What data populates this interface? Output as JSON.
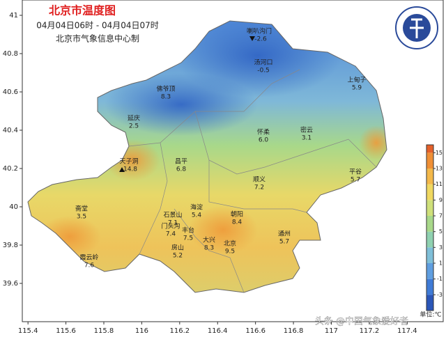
{
  "map": {
    "title": "北京市温度图",
    "subtitle": "04月04日06时 - 04月04日07时",
    "producer": "北京市气象信息中心制",
    "xlim": [
      115.37,
      117.59
    ],
    "ylim": [
      39.4,
      41.08
    ],
    "xticks": [
      115.4,
      115.6,
      115.8,
      116,
      116.2,
      116.4,
      116.6,
      116.8,
      117,
      117.2,
      117.4
    ],
    "yticks": [
      39.6,
      39.8,
      40,
      40.2,
      40.4,
      40.6,
      40.8,
      41
    ],
    "stations": [
      {
        "name": "喇叭沟门",
        "value": "-2.6"
      },
      {
        "name": "汤河口",
        "value": "-0.5"
      },
      {
        "name": "上甸子",
        "value": "5.9"
      },
      {
        "name": "佛爷顶",
        "value": "8.3"
      },
      {
        "name": "延庆",
        "value": "2.5"
      },
      {
        "name": "怀柔",
        "value": "6.0"
      },
      {
        "name": "密云",
        "value": "3.1"
      },
      {
        "name": "天子洞",
        "value": "14.8"
      },
      {
        "name": "昌平",
        "value": "6.8"
      },
      {
        "name": "顺义",
        "value": "7.2"
      },
      {
        "name": "平谷",
        "value": "5.7"
      },
      {
        "name": "斋堂",
        "value": "3.5"
      },
      {
        "name": "海淀",
        "value": "5.4"
      },
      {
        "name": "石景山",
        "value": "7.1"
      },
      {
        "name": "朝阳",
        "value": "8.4"
      },
      {
        "name": "门头沟",
        "value": "7.4"
      },
      {
        "name": "丰台",
        "value": "7.5"
      },
      {
        "name": "通州",
        "value": "5.7"
      },
      {
        "name": "房山",
        "value": "5.2"
      },
      {
        "name": "北京",
        "value": "9.5"
      },
      {
        "name": "霞云岭",
        "value": "7.6"
      },
      {
        "name": "大兴",
        "value": "8.3"
      }
    ],
    "colorbar": {
      "clim": [
        -5,
        16
      ],
      "ticks": [
        -3,
        -1,
        1,
        3,
        5,
        7,
        9,
        11,
        13,
        15
      ],
      "colors": [
        "#2a56b8",
        "#3f7bd6",
        "#5f9ee0",
        "#7fbfd8",
        "#8fd1b0",
        "#a8d88a",
        "#cfe07a",
        "#f0d860",
        "#f3b84a",
        "#ef8f35",
        "#e4602a"
      ],
      "unit": "单位:℃"
    },
    "watermark": "头条 @中国气象爱好者"
  }
}
